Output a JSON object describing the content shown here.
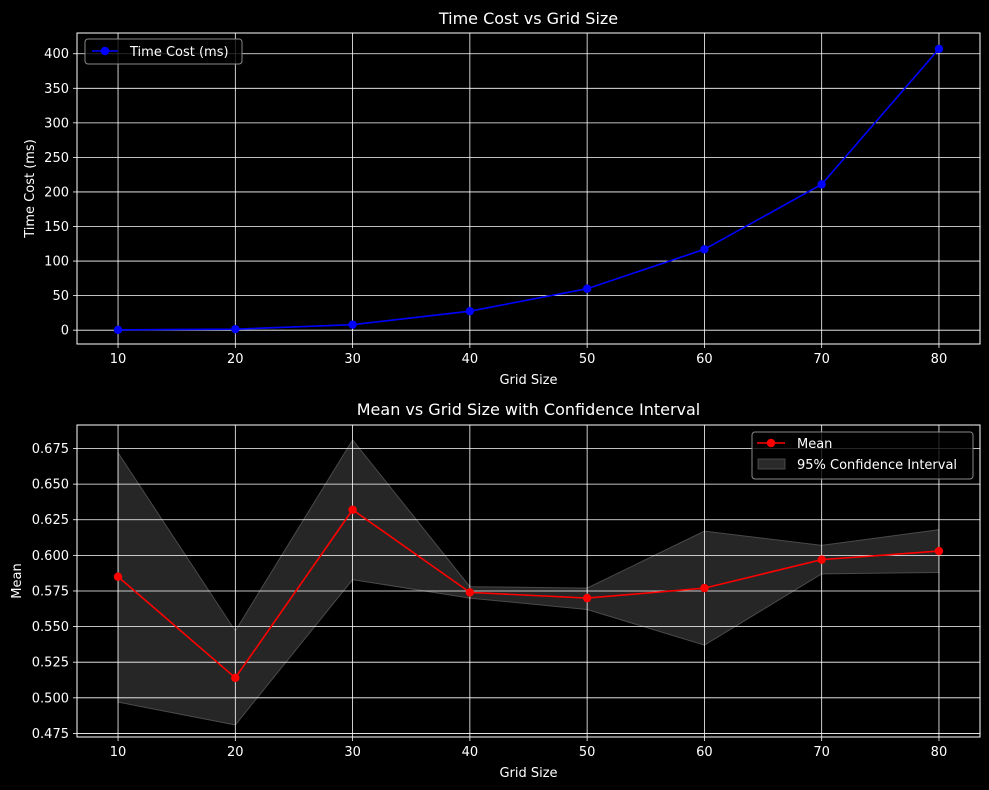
{
  "chart_data": [
    {
      "type": "line",
      "title": "Time Cost vs Grid Size",
      "xlabel": "Grid Size",
      "ylabel": "Time Cost (ms)",
      "x": [
        10,
        20,
        30,
        40,
        50,
        60,
        70,
        80
      ],
      "x_ticks": [
        "10",
        "20",
        "30",
        "40",
        "50",
        "60",
        "70",
        "80"
      ],
      "y_ticks": [
        "0",
        "50",
        "100",
        "150",
        "200",
        "250",
        "300",
        "350",
        "400"
      ],
      "xlim": [
        6.5,
        83.5
      ],
      "ylim": [
        -20,
        430
      ],
      "grid": true,
      "legend_position": "top-left",
      "series": [
        {
          "name": "Time Cost (ms)",
          "color": "#0000ff",
          "marker": "circle",
          "values": [
            0.5,
            1.5,
            8,
            27.5,
            60,
            117,
            211,
            407
          ]
        }
      ]
    },
    {
      "type": "line",
      "title": "Mean vs Grid Size with Confidence Interval",
      "xlabel": "Grid Size",
      "ylabel": "Mean",
      "x": [
        10,
        20,
        30,
        40,
        50,
        60,
        70,
        80
      ],
      "x_ticks": [
        "10",
        "20",
        "30",
        "40",
        "50",
        "60",
        "70",
        "80"
      ],
      "y_ticks": [
        "0.475",
        "0.500",
        "0.525",
        "0.550",
        "0.575",
        "0.600",
        "0.625",
        "0.650",
        "0.675"
      ],
      "xlim": [
        6.5,
        83.5
      ],
      "ylim": [
        0.4725,
        0.6915
      ],
      "grid": true,
      "legend_position": "top-right",
      "series": [
        {
          "name": "Mean",
          "color": "#ff0000",
          "marker": "circle",
          "values": [
            0.585,
            0.514,
            0.632,
            0.574,
            0.57,
            0.577,
            0.597,
            0.603
          ]
        }
      ],
      "band": {
        "name": "95% Confidence Interval",
        "color": "#404040",
        "lower": [
          0.497,
          0.481,
          0.583,
          0.57,
          0.562,
          0.537,
          0.587,
          0.588
        ],
        "upper": [
          0.672,
          0.547,
          0.681,
          0.578,
          0.577,
          0.617,
          0.607,
          0.618
        ]
      }
    }
  ]
}
